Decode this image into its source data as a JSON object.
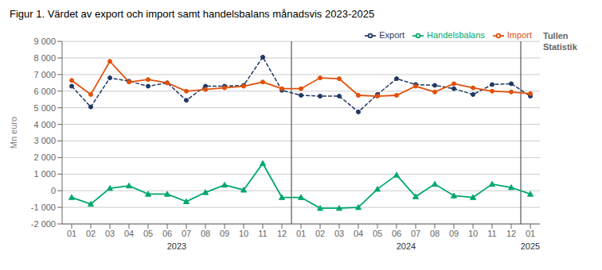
{
  "chart_data": {
    "type": "line",
    "title": "Figur 1. Värdet av export och import samt handelsbalans månadsvis 2023-2025",
    "ylabel": "Mn euro",
    "categories": [
      "01",
      "02",
      "03",
      "04",
      "05",
      "06",
      "07",
      "08",
      "09",
      "10",
      "11",
      "12",
      "01",
      "02",
      "03",
      "04",
      "05",
      "06",
      "07",
      "08",
      "09",
      "10",
      "11",
      "12",
      "01"
    ],
    "series": [
      {
        "name": "Export",
        "color": "#1f3864",
        "line_style": "dashed",
        "marker": "circle",
        "values": [
          6300,
          5050,
          6800,
          6600,
          6300,
          6500,
          5450,
          6300,
          6300,
          6350,
          8050,
          6050,
          5750,
          5700,
          5700,
          4750,
          5800,
          6750,
          6400,
          6350,
          6150,
          5800,
          6400,
          6450,
          5700
        ]
      },
      {
        "name": "Import",
        "color": "#e2500a",
        "line_style": "solid",
        "marker": "circle",
        "values": [
          6650,
          5800,
          7800,
          6550,
          6700,
          6500,
          6000,
          6100,
          6200,
          6300,
          6550,
          6150,
          6150,
          6800,
          6750,
          5750,
          5700,
          5750,
          6300,
          5950,
          6450,
          6200,
          6000,
          5950,
          5850
        ]
      },
      {
        "name": "Handelsbalans",
        "color": "#00a86b",
        "line_style": "solid",
        "marker": "triangle",
        "values": [
          -400,
          -800,
          150,
          300,
          -200,
          -200,
          -650,
          -100,
          350,
          50,
          1650,
          -400,
          -400,
          -1050,
          -1050,
          -1000,
          100,
          950,
          -350,
          400,
          -300,
          -400,
          400,
          200,
          -200
        ]
      }
    ],
    "ylim": [
      -2000,
      9000
    ],
    "yticks": [
      {
        "value": -2000,
        "label": "-2 000"
      },
      {
        "value": -1000,
        "label": "-1 000"
      },
      0,
      {
        "value": 1000,
        "label": "1 000"
      },
      {
        "value": 2000,
        "label": "2 000"
      },
      {
        "value": 3000,
        "label": "3 000"
      },
      {
        "value": 4000,
        "label": "4 000"
      },
      {
        "value": 5000,
        "label": "5 000"
      },
      {
        "value": 6000,
        "label": "6 000"
      },
      {
        "value": 7000,
        "label": "7 000"
      },
      {
        "value": 8000,
        "label": "8 000"
      },
      {
        "value": 9000,
        "label": "9 000"
      }
    ],
    "grid": true,
    "legend": "upper right",
    "annotations": [
      "2023",
      "2024",
      "2025",
      "Tullen",
      "Statistik"
    ]
  }
}
